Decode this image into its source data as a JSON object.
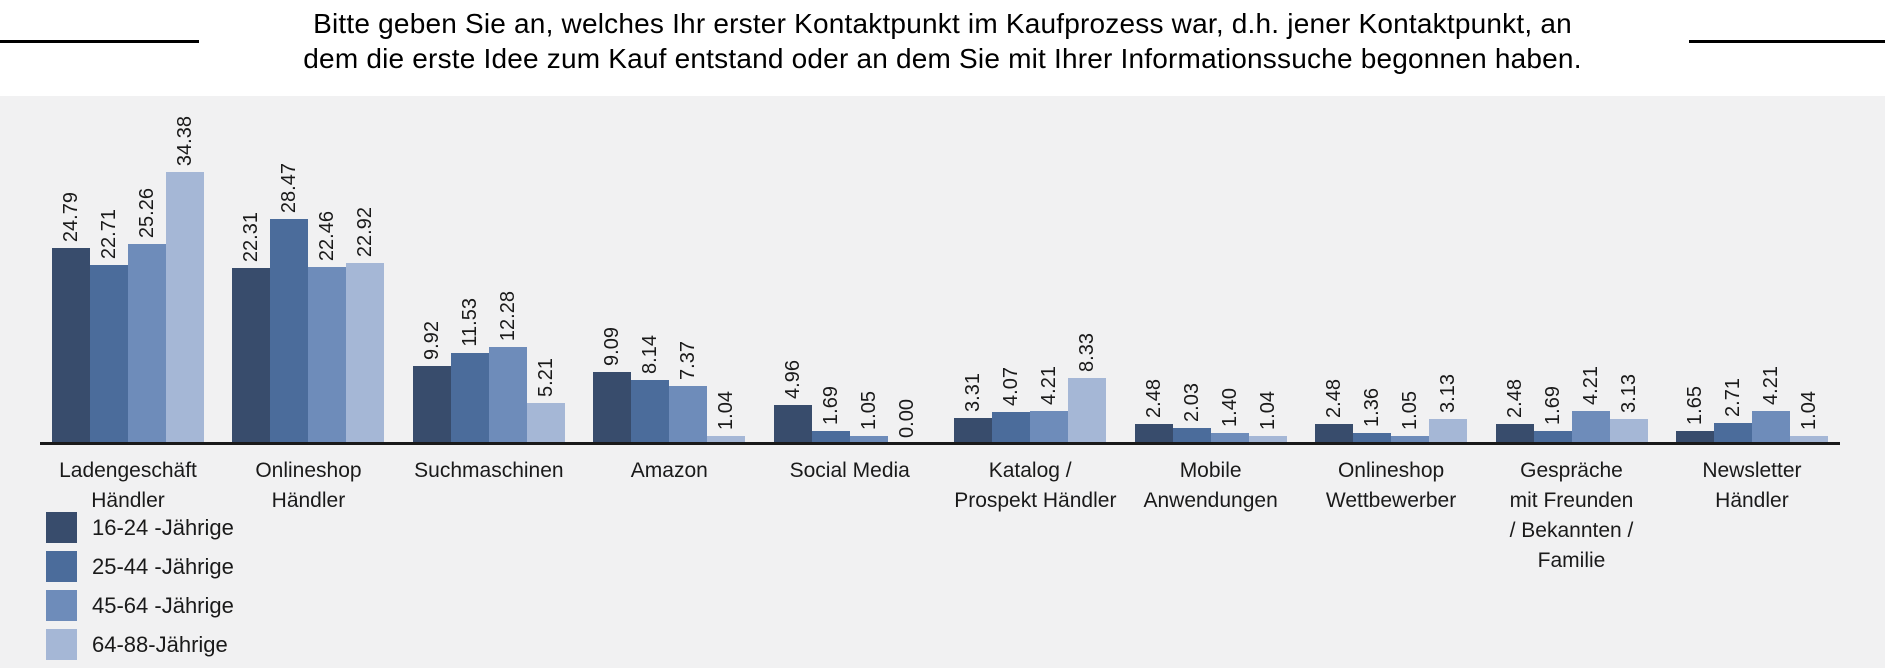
{
  "title": {
    "line1": "Bitte geben Sie an, welches Ihr erster Kontaktpunkt im Kaufprozess war, d.h. jener Kontaktpunkt, an",
    "line2": "dem die erste Idee zum Kauf entstand oder an dem Sie mit Ihrer Informationssuche begonnen haben."
  },
  "chart_data": {
    "type": "bar",
    "title": "Bitte geben Sie an, welches Ihr erster Kontaktpunkt im Kaufprozess war, d.h. jener Kontaktpunkt, an dem die erste Idee zum Kauf entstand oder an dem Sie mit Ihrer Informationssuche begonnen haben.",
    "categories": [
      [
        "Ladengeschäft",
        "Händler"
      ],
      [
        "Onlineshop",
        "Händler"
      ],
      [
        "Suchmaschinen"
      ],
      [
        "Amazon"
      ],
      [
        "Social Media"
      ],
      [
        "Katalog /",
        "Prospekt Händler"
      ],
      [
        "Mobile",
        "Anwendungen"
      ],
      [
        "Onlineshop",
        "Wettbewerber"
      ],
      [
        "Gespräche",
        "mit Freunden",
        "/ Bekannten /",
        "Familie"
      ],
      [
        "Newsletter",
        "Händler"
      ]
    ],
    "series": [
      {
        "name": "16-24 -Jährige",
        "color": "#384C6C",
        "values": [
          24.79,
          22.31,
          9.92,
          9.09,
          4.96,
          3.31,
          2.48,
          2.48,
          2.48,
          1.65
        ]
      },
      {
        "name": "25-44 -Jährige",
        "color": "#4B6C9B",
        "values": [
          22.71,
          28.47,
          11.53,
          8.14,
          1.69,
          4.07,
          2.03,
          1.36,
          1.69,
          2.71
        ]
      },
      {
        "name": "45-64 -Jährige",
        "color": "#6E8CBA",
        "values": [
          25.26,
          22.46,
          12.28,
          7.37,
          1.05,
          4.21,
          1.4,
          1.05,
          4.21,
          4.21
        ]
      },
      {
        "name": "64-88-Jährige",
        "color": "#A5B7D6",
        "values": [
          34.38,
          22.92,
          5.21,
          1.04,
          0.0,
          8.33,
          1.04,
          3.13,
          3.13,
          1.04
        ]
      }
    ],
    "decimals": 2,
    "value_labels": "rotated-90-above-bars",
    "xlabel": "",
    "ylabel": "",
    "y_axis": "hidden",
    "ylim": [
      0,
      44
    ],
    "grid": false,
    "legend_position": "bottom-left"
  }
}
